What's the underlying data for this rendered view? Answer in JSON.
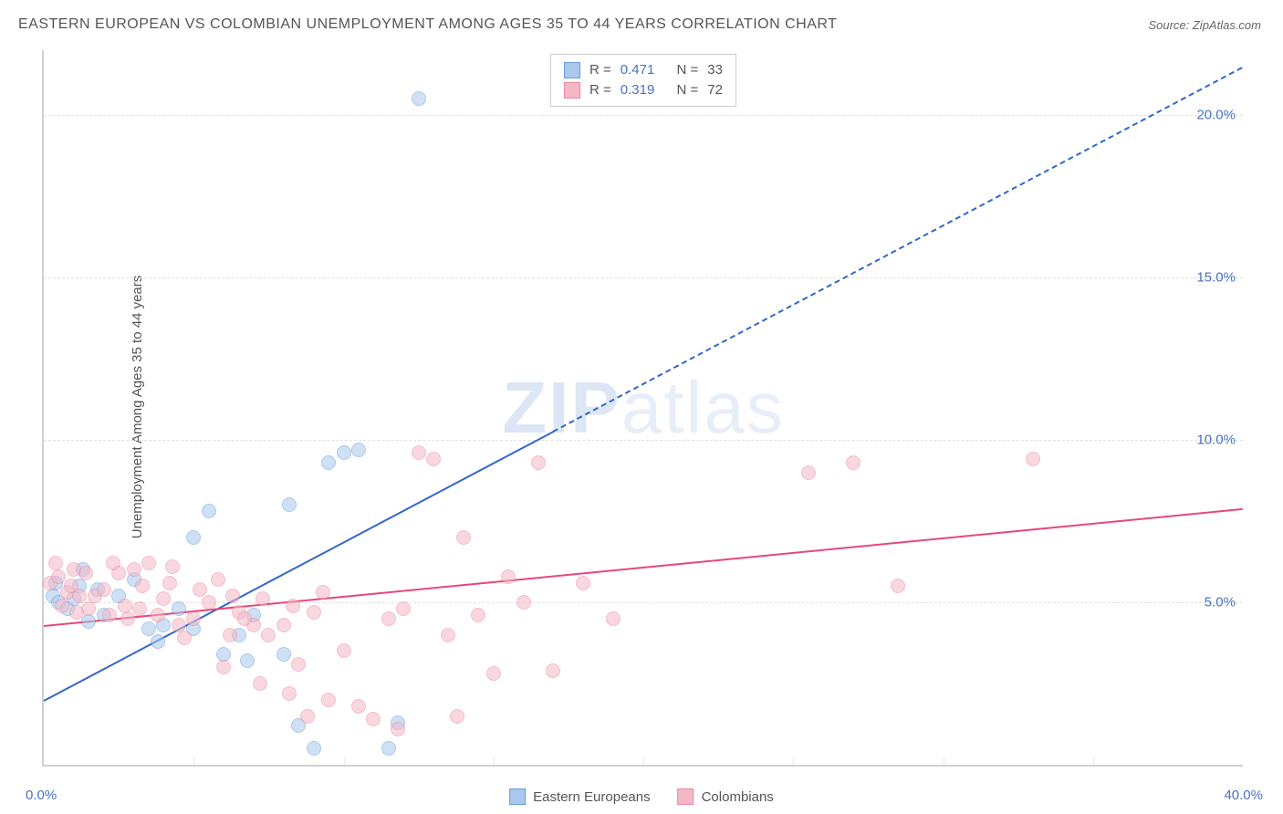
{
  "title": "EASTERN EUROPEAN VS COLOMBIAN UNEMPLOYMENT AMONG AGES 35 TO 44 YEARS CORRELATION CHART",
  "source_label": "Source: ",
  "source_value": "ZipAtlas.com",
  "ylabel": "Unemployment Among Ages 35 to 44 years",
  "watermark_part1": "ZIP",
  "watermark_part2": "atlas",
  "chart": {
    "type": "scatter",
    "xlim": [
      0,
      40
    ],
    "ylim": [
      0,
      22
    ],
    "background_color": "#ffffff",
    "grid_color": "#e0e0e0",
    "border_color": "#d0d0d0",
    "yticks": [
      {
        "v": 5,
        "label": "5.0%"
      },
      {
        "v": 10,
        "label": "10.0%"
      },
      {
        "v": 15,
        "label": "15.0%"
      },
      {
        "v": 20,
        "label": "20.0%"
      }
    ],
    "xticks_minor": [
      5,
      10,
      15,
      20,
      25,
      30,
      35
    ],
    "xtick_zero_label": "0.0%",
    "xtick_max_label": "40.0%",
    "series": [
      {
        "name": "Eastern Europeans",
        "fill_color": "#a9c8ec",
        "fill_opacity": 0.55,
        "stroke_color": "#6a9ed8",
        "marker_size": 16,
        "regression": {
          "x1": 0,
          "y1": 2.0,
          "x2": 40,
          "y2": 21.5,
          "color": "#3366cc",
          "width": 2,
          "dash_from_x": 17
        },
        "R_label": "R =",
        "R": "0.471",
        "N_label": "N =",
        "N": "33",
        "points": [
          [
            0.3,
            5.2
          ],
          [
            0.5,
            5.0
          ],
          [
            0.4,
            5.6
          ],
          [
            0.8,
            4.8
          ],
          [
            1.0,
            5.1
          ],
          [
            1.2,
            5.5
          ],
          [
            1.5,
            4.4
          ],
          [
            1.3,
            6.0
          ],
          [
            1.8,
            5.4
          ],
          [
            2.0,
            4.6
          ],
          [
            2.5,
            5.2
          ],
          [
            3.0,
            5.7
          ],
          [
            3.5,
            4.2
          ],
          [
            4.0,
            4.3
          ],
          [
            4.5,
            4.8
          ],
          [
            5.0,
            4.2
          ],
          [
            5.0,
            7.0
          ],
          [
            5.5,
            7.8
          ],
          [
            6.0,
            3.4
          ],
          [
            6.5,
            4.0
          ],
          [
            6.8,
            3.2
          ],
          [
            7.0,
            4.6
          ],
          [
            8.0,
            3.4
          ],
          [
            8.5,
            1.2
          ],
          [
            9.0,
            0.5
          ],
          [
            9.5,
            9.3
          ],
          [
            10.0,
            9.6
          ],
          [
            10.5,
            9.7
          ],
          [
            11.5,
            0.5
          ],
          [
            11.8,
            1.3
          ],
          [
            12.5,
            20.5
          ],
          [
            8.2,
            8.0
          ],
          [
            3.8,
            3.8
          ]
        ]
      },
      {
        "name": "Colombians",
        "fill_color": "#f4b7c6",
        "fill_opacity": 0.55,
        "stroke_color": "#e98ba4",
        "marker_size": 16,
        "regression": {
          "x1": 0,
          "y1": 4.3,
          "x2": 40,
          "y2": 7.9,
          "color": "#e6487a",
          "width": 2,
          "dash_from_x": 999
        },
        "R_label": "R =",
        "R": "0.319",
        "N_label": "N =",
        "N": "72",
        "points": [
          [
            0.2,
            5.6
          ],
          [
            0.5,
            5.8
          ],
          [
            0.8,
            5.3
          ],
          [
            1.0,
            6.0
          ],
          [
            1.2,
            5.2
          ],
          [
            1.5,
            4.8
          ],
          [
            1.7,
            5.2
          ],
          [
            2.0,
            5.4
          ],
          [
            0.4,
            6.2
          ],
          [
            2.2,
            4.6
          ],
          [
            2.5,
            5.9
          ],
          [
            2.8,
            4.5
          ],
          [
            3.0,
            6.0
          ],
          [
            3.2,
            4.8
          ],
          [
            3.5,
            6.2
          ],
          [
            3.8,
            4.6
          ],
          [
            4.0,
            5.1
          ],
          [
            4.2,
            5.6
          ],
          [
            4.5,
            4.3
          ],
          [
            5.0,
            4.5
          ],
          [
            5.5,
            5.0
          ],
          [
            5.8,
            5.7
          ],
          [
            6.0,
            3.0
          ],
          [
            6.2,
            4.0
          ],
          [
            6.5,
            4.7
          ],
          [
            7.0,
            4.3
          ],
          [
            7.2,
            2.5
          ],
          [
            7.5,
            4.0
          ],
          [
            8.0,
            4.3
          ],
          [
            8.2,
            2.2
          ],
          [
            8.5,
            3.1
          ],
          [
            8.8,
            1.5
          ],
          [
            9.0,
            4.7
          ],
          [
            9.5,
            2.0
          ],
          [
            10.0,
            3.5
          ],
          [
            10.5,
            1.8
          ],
          [
            11.0,
            1.4
          ],
          [
            11.5,
            4.5
          ],
          [
            12.0,
            4.8
          ],
          [
            12.5,
            9.6
          ],
          [
            13.0,
            9.4
          ],
          [
            13.5,
            4.0
          ],
          [
            14.0,
            7.0
          ],
          [
            14.5,
            4.6
          ],
          [
            15.0,
            2.8
          ],
          [
            15.5,
            5.8
          ],
          [
            16.0,
            5.0
          ],
          [
            16.5,
            9.3
          ],
          [
            17.0,
            2.9
          ],
          [
            18.0,
            5.6
          ],
          [
            19.0,
            4.5
          ],
          [
            11.8,
            1.1
          ],
          [
            13.8,
            1.5
          ],
          [
            0.6,
            4.9
          ],
          [
            1.1,
            4.7
          ],
          [
            2.3,
            6.2
          ],
          [
            3.3,
            5.5
          ],
          [
            4.3,
            6.1
          ],
          [
            5.2,
            5.4
          ],
          [
            6.3,
            5.2
          ],
          [
            7.3,
            5.1
          ],
          [
            8.3,
            4.9
          ],
          [
            9.3,
            5.3
          ],
          [
            25.5,
            9.0
          ],
          [
            27.0,
            9.3
          ],
          [
            33.0,
            9.4
          ],
          [
            28.5,
            5.5
          ],
          [
            1.4,
            5.9
          ],
          [
            0.9,
            5.5
          ],
          [
            2.7,
            4.9
          ],
          [
            4.7,
            3.9
          ],
          [
            6.7,
            4.5
          ]
        ]
      }
    ]
  },
  "legend_bottom": {
    "items": [
      {
        "name": "Eastern Europeans",
        "fill": "#a9c8ec",
        "stroke": "#6a9ed8"
      },
      {
        "name": "Colombians",
        "fill": "#f4b7c6",
        "stroke": "#e98ba4"
      }
    ]
  }
}
